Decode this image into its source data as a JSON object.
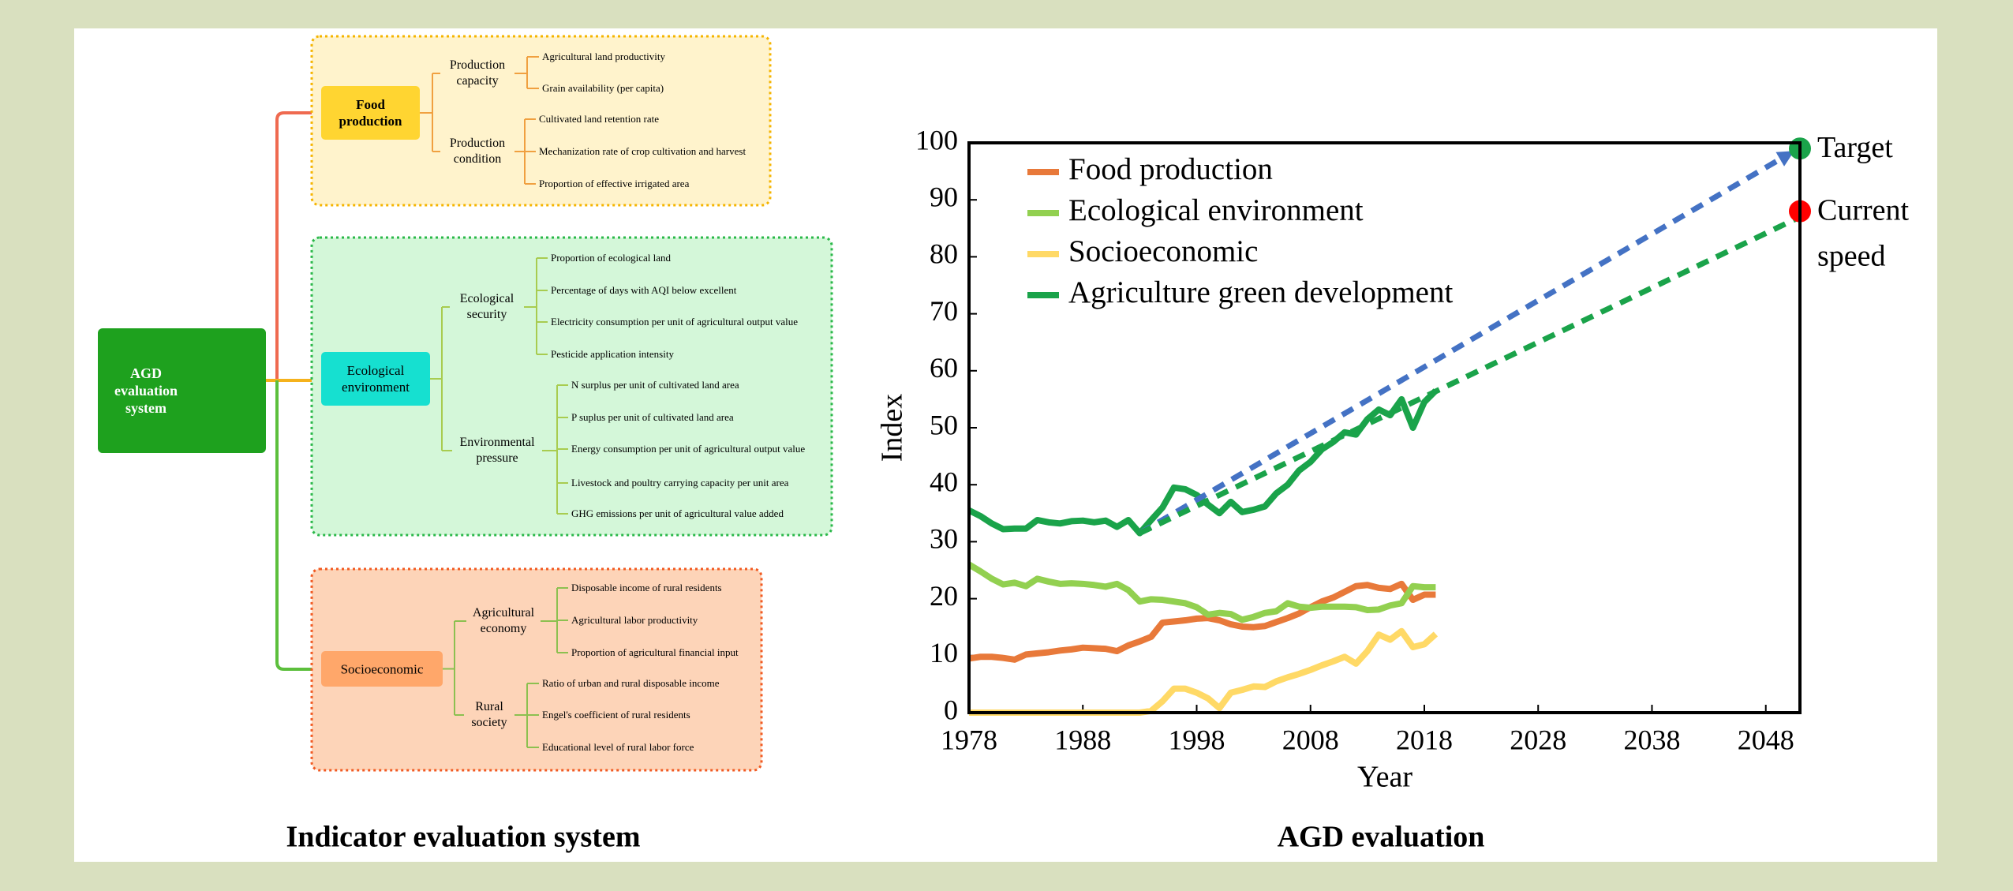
{
  "diagram": {
    "root": "AGD evaluation system",
    "caption": "Indicator evaluation system",
    "groups": [
      {
        "label": "Food production",
        "subgroups": [
          {
            "label": "Production capacity",
            "items": [
              "Agricultural land productivity",
              "Grain availability (per capita)"
            ]
          },
          {
            "label": "Production condition",
            "items": [
              "Cultivated land retention rate",
              "Mechanization rate of crop cultivation and harvest",
              "Proportion of effective irrigated area"
            ]
          }
        ]
      },
      {
        "label": "Ecological environment",
        "subgroups": [
          {
            "label": "Ecological security",
            "items": [
              "Proportion of ecological land",
              "Percentage of days with AQI below excellent",
              "Electricity consumption per unit of agricultural output value",
              "Pesticide application intensity"
            ]
          },
          {
            "label": "Environmental pressure",
            "items": [
              "N surplus per unit of cultivated land area",
              "P suplus per unit of cultivated land area",
              "Energy consumption per unit of agricultural output value",
              "Livestock and poultry carrying capacity per unit area",
              "GHG emissions per unit of agricultural value added"
            ]
          }
        ]
      },
      {
        "label": "Socioeconomic",
        "subgroups": [
          {
            "label": "Agricultural economy",
            "items": [
              "Disposable income of rural residents",
              "Agricultural labor productivity",
              "Proportion of agricultural financial input"
            ]
          },
          {
            "label": "Rural society",
            "items": [
              "Ratio of urban and rural disposable income",
              "Engel's coefficient of rural residents",
              "Educational level of rural labor force"
            ]
          }
        ]
      }
    ]
  },
  "chart_data": {
    "type": "line",
    "title": "AGD evaluation",
    "xlabel": "Year",
    "ylabel": "Index",
    "x": [
      1978,
      1979,
      1980,
      1981,
      1982,
      1983,
      1984,
      1985,
      1986,
      1987,
      1988,
      1989,
      1990,
      1991,
      1992,
      1993,
      1994,
      1995,
      1996,
      1997,
      1998,
      1999,
      2000,
      2001,
      2002,
      2003,
      2004,
      2005,
      2006,
      2007,
      2008,
      2009,
      2010,
      2011,
      2012,
      2013,
      2014,
      2015,
      2016,
      2017,
      2018,
      2019
    ],
    "series": [
      {
        "name": "Food production",
        "color": "#e8793a",
        "values": [
          9.5,
          9.8,
          9.8,
          9.6,
          9.3,
          10.2,
          10.4,
          10.6,
          10.9,
          11.1,
          11.4,
          11.3,
          11.2,
          10.8,
          11.8,
          12.5,
          13.3,
          15.8,
          16.0,
          16.2,
          16.5,
          16.6,
          16.2,
          15.5,
          15.1,
          15.0,
          15.2,
          15.9,
          16.6,
          17.4,
          18.5,
          19.5,
          20.2,
          21.2,
          22.2,
          22.4,
          21.9,
          21.7,
          22.6,
          19.8,
          20.7,
          20.7
        ]
      },
      {
        "name": "Ecological environment",
        "color": "#92d050",
        "values": [
          26,
          24.8,
          23.5,
          22.5,
          22.8,
          22.2,
          23.5,
          23.0,
          22.6,
          22.7,
          22.6,
          22.4,
          22.1,
          22.6,
          21.5,
          19.5,
          19.9,
          19.8,
          19.5,
          19.2,
          18.5,
          17.2,
          17.5,
          17.3,
          16.3,
          16.8,
          17.5,
          17.8,
          19.2,
          18.6,
          18.4,
          18.6,
          18.6,
          18.6,
          18.5,
          18.0,
          18.1,
          18.8,
          19.2,
          22.2,
          22.0,
          22.0
        ]
      },
      {
        "name": "Socioeconomic",
        "color": "#ffd966",
        "values": [
          0,
          0,
          0,
          0,
          0,
          0,
          0,
          0,
          0,
          0,
          0,
          0,
          0,
          0,
          0,
          0,
          0.3,
          2.0,
          4.2,
          4.2,
          3.5,
          2.5,
          0.8,
          3.5,
          4.0,
          4.6,
          4.5,
          5.5,
          6.2,
          6.8,
          7.5,
          8.3,
          9.0,
          9.8,
          8.6,
          10.8,
          13.7,
          12.8,
          14.3,
          11.5,
          12.0,
          13.8
        ]
      },
      {
        "name": "Agriculture green development",
        "color": "#1aa34a",
        "values": [
          35.5,
          34.5,
          33.2,
          32.2,
          32.3,
          32.3,
          33.8,
          33.4,
          33.2,
          33.6,
          33.7,
          33.4,
          33.7,
          32.6,
          33.8,
          31.5,
          33.8,
          36.0,
          39.5,
          39.2,
          38.2,
          36.5,
          35.0,
          37.0,
          35.2,
          35.6,
          36.2,
          38.5,
          40.0,
          42.5,
          44.0,
          46.2,
          47.5,
          49.2,
          48.8,
          51.5,
          53.2,
          52.2,
          55.0,
          50.0,
          54.5,
          56.5
        ]
      }
    ],
    "projections": [
      {
        "color": "#4472c4",
        "x": [
          1993,
          2050
        ],
        "values": [
          31.5,
          98
        ]
      },
      {
        "color": "#1aa34a",
        "x": [
          1993,
          2051
        ],
        "values": [
          31.5,
          87
        ]
      }
    ],
    "markers": [
      {
        "label": "Target",
        "color": "#1aa34a",
        "x": 2051,
        "value": 99
      },
      {
        "label": [
          "Current",
          "speed"
        ],
        "color": "#ff0000",
        "x": 2051,
        "value": 88
      }
    ],
    "xlim": [
      1978,
      2051
    ],
    "xticks": [
      1978,
      1988,
      1998,
      2008,
      2018,
      2028,
      2038,
      2048
    ],
    "ylim": [
      0,
      100
    ],
    "yticks": [
      0,
      10,
      20,
      30,
      40,
      50,
      60,
      70,
      80,
      90,
      100
    ],
    "grid": false,
    "legend": "upper left"
  }
}
